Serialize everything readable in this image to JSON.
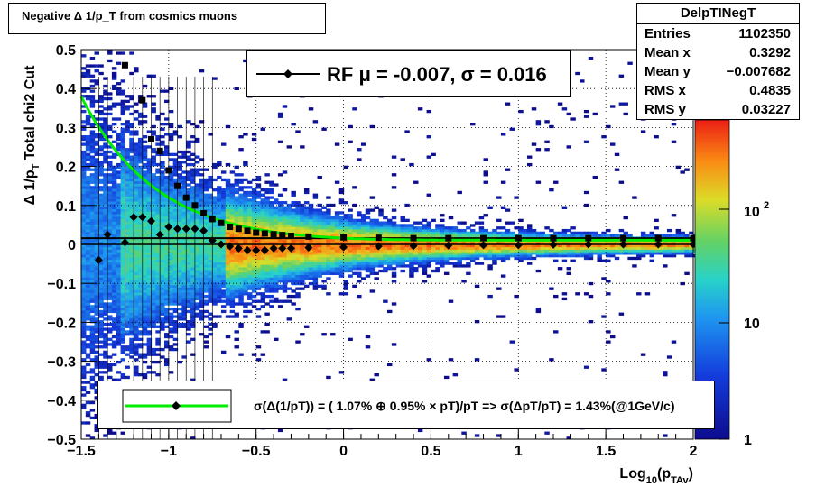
{
  "title": "Negative Δ 1/p_T from cosmics muons",
  "stats": {
    "name": "DelpTINegT",
    "rows": [
      {
        "label": "Entries",
        "value": "1102350"
      },
      {
        "label": "Mean x",
        "value": "0.3292"
      },
      {
        "label": "Mean y",
        "value": "−0.007682"
      },
      {
        "label": "RMS x",
        "value": "0.4835"
      },
      {
        "label": "RMS y",
        "value": "0.03227"
      }
    ]
  },
  "rf_legend": "RF μ = -0.007, σ =   0.016",
  "fit_legend": "σ(Δ(1/pT)) = ( 1.07% ⊕  0.95% × pT)/pT => σ(ΔpT/pT) =  1.43%(@1GeV/c)",
  "colors": {
    "line": "#00ee00",
    "marker": "#000000"
  },
  "chart_data": {
    "type": "heatmap",
    "xlabel": "Log_10(p_TAv)",
    "ylabel": "Δ 1/p_T   Total chi2 Cut",
    "xlim": [
      -1.5,
      2
    ],
    "ylim": [
      -0.5,
      0.5
    ],
    "xticks": [
      "−1.5",
      "−1",
      "−0.5",
      "0",
      "0.5",
      "1",
      "1.5",
      "2"
    ],
    "yticks": [
      "−0.5",
      "−0.4",
      "−0.3",
      "−0.2",
      "−0.1",
      "0",
      "0.1",
      "0.2",
      "0.3",
      "0.4",
      "0.5"
    ],
    "zscale": "log",
    "zticks": [
      "1",
      "10",
      "10^2"
    ],
    "grid": true,
    "series": [
      {
        "kind": "mean-markers",
        "x": [
          -1.4,
          -1.35,
          -1.25,
          -1.2,
          -1.15,
          -1.1,
          -1.05,
          -1.0,
          -0.95,
          -0.9,
          -0.85,
          -0.8,
          -0.75,
          -0.7,
          -0.65,
          -0.6,
          -0.55,
          -0.5,
          -0.45,
          -0.4,
          -0.35,
          -0.3,
          -0.2,
          0.0,
          0.2,
          0.4,
          0.6,
          0.8,
          1.0,
          1.2,
          1.4,
          1.6,
          1.8,
          2.0
        ],
        "y": [
          -0.04,
          0.025,
          0.005,
          0.07,
          0.07,
          0.06,
          0.025,
          0.045,
          0.04,
          0.04,
          0.04,
          0.035,
          0.01,
          0.0,
          -0.005,
          -0.01,
          -0.015,
          -0.015,
          -0.015,
          -0.01,
          -0.01,
          -0.01,
          -0.008,
          -0.007,
          -0.005,
          -0.004,
          -0.003,
          -0.002,
          -0.002,
          -0.001,
          0.0,
          0.0,
          0.0,
          0.0
        ]
      },
      {
        "kind": "rms-squares",
        "x": [
          -1.25,
          -1.15,
          -1.1,
          -1.05,
          -1.0,
          -0.95,
          -0.9,
          -0.85,
          -0.8,
          -0.75,
          -0.7,
          -0.65,
          -0.6,
          -0.55,
          -0.5,
          -0.45,
          -0.4,
          -0.35,
          -0.3,
          -0.2,
          0.0,
          0.2,
          0.4,
          0.6,
          0.8,
          1.0,
          1.2,
          1.4,
          1.6,
          1.8,
          2.0
        ],
        "y": [
          0.46,
          0.37,
          0.27,
          0.24,
          0.19,
          0.15,
          0.12,
          0.1,
          0.08,
          0.065,
          0.055,
          0.045,
          0.04,
          0.035,
          0.03,
          0.028,
          0.026,
          0.024,
          0.022,
          0.02,
          0.018,
          0.017,
          0.016,
          0.016,
          0.016,
          0.016,
          0.016,
          0.016,
          0.016,
          0.016,
          0.016
        ]
      },
      {
        "kind": "fit-curve",
        "resolution_pct": 1.07,
        "slope_pct": 0.95
      }
    ]
  }
}
